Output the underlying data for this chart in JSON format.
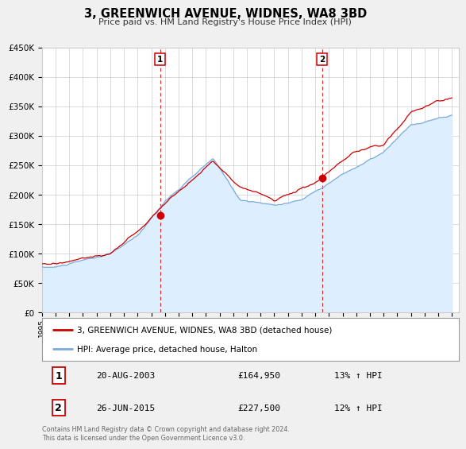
{
  "title": "3, GREENWICH AVENUE, WIDNES, WA8 3BD",
  "subtitle": "Price paid vs. HM Land Registry's House Price Index (HPI)",
  "ylim": [
    0,
    450000
  ],
  "xlim_start": 1995.0,
  "xlim_end": 2025.5,
  "yticks": [
    0,
    50000,
    100000,
    150000,
    200000,
    250000,
    300000,
    350000,
    400000,
    450000
  ],
  "ytick_labels": [
    "£0",
    "£50K",
    "£100K",
    "£150K",
    "£200K",
    "£250K",
    "£300K",
    "£350K",
    "£400K",
    "£450K"
  ],
  "xticks": [
    1995,
    1996,
    1997,
    1998,
    1999,
    2000,
    2001,
    2002,
    2003,
    2004,
    2005,
    2006,
    2007,
    2008,
    2009,
    2010,
    2011,
    2012,
    2013,
    2014,
    2015,
    2016,
    2017,
    2018,
    2019,
    2020,
    2021,
    2022,
    2023,
    2024,
    2025
  ],
  "sale1_x": 2003.64,
  "sale1_y": 164950,
  "sale1_label": "1",
  "sale1_date": "20-AUG-2003",
  "sale1_price": "£164,950",
  "sale1_hpi": "13% ↑ HPI",
  "sale2_x": 2015.49,
  "sale2_y": 227500,
  "sale2_label": "2",
  "sale2_date": "26-JUN-2015",
  "sale2_price": "£227,500",
  "sale2_hpi": "12% ↑ HPI",
  "line_color_red": "#cc0000",
  "line_color_blue": "#7aaadd",
  "fill_color_blue": "#ddeeff",
  "vline_color": "#cc0000",
  "bg_color": "#f0f0f0",
  "plot_bg_color": "#ffffff",
  "grid_color": "#cccccc",
  "legend_label_red": "3, GREENWICH AVENUE, WIDNES, WA8 3BD (detached house)",
  "legend_label_blue": "HPI: Average price, detached house, Halton",
  "footer": "Contains HM Land Registry data © Crown copyright and database right 2024.\nThis data is licensed under the Open Government Licence v3.0."
}
